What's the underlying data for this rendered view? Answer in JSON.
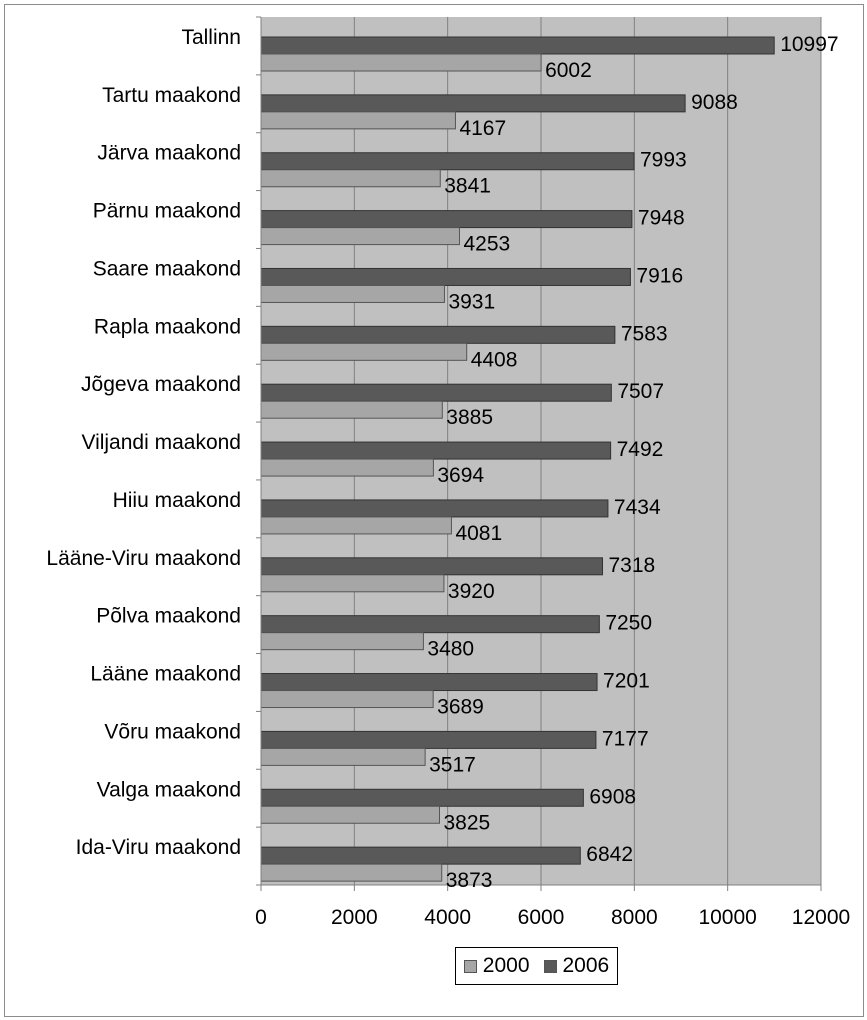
{
  "chart_data": {
    "type": "bar",
    "orientation": "horizontal",
    "title": "",
    "xlabel": "",
    "ylabel": "",
    "categories": [
      "Tallinn",
      "Tartu maakond",
      "Järva maakond",
      "Pärnu maakond",
      "Saare maakond",
      "Rapla maakond",
      "Jõgeva maakond",
      "Viljandi maakond",
      "Hiiu maakond",
      "Lääne-Viru maakond",
      "Põlva maakond",
      "Lääne maakond",
      "Võru maakond",
      "Valga maakond",
      "Ida-Viru maakond"
    ],
    "series": [
      {
        "name": "2000",
        "color": "#a6a6a6",
        "values": [
          6002,
          4167,
          3841,
          4253,
          3931,
          4408,
          3885,
          3694,
          4081,
          3920,
          3480,
          3689,
          3517,
          3825,
          3873
        ]
      },
      {
        "name": "2006",
        "color": "#595959",
        "values": [
          10997,
          9088,
          7993,
          7948,
          7916,
          7583,
          7507,
          7492,
          7434,
          7318,
          7250,
          7201,
          7177,
          6908,
          6842
        ]
      }
    ],
    "xlim": [
      0,
      12000
    ],
    "xticks": [
      0,
      2000,
      4000,
      6000,
      8000,
      10000,
      12000
    ],
    "grid": true,
    "legend": "bottom",
    "plot_background": "#c0c0c0",
    "gridline_color": "#808080"
  }
}
